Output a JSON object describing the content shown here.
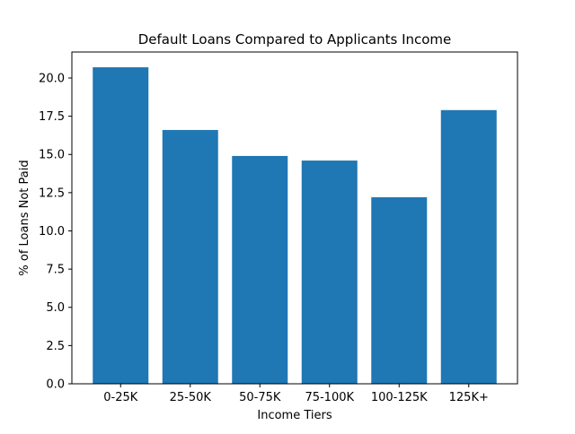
{
  "chart_data": {
    "type": "bar",
    "title": "Default Loans Compared to Applicants Income",
    "xlabel": "Income Tiers",
    "ylabel": "% of Loans Not Paid",
    "categories": [
      "0-25K",
      "25-50K",
      "50-75K",
      "75-100K",
      "100-125K",
      "125K+"
    ],
    "values": [
      20.7,
      16.6,
      14.9,
      14.6,
      12.2,
      17.9
    ],
    "ylim": [
      0,
      21.7
    ],
    "yticks": [
      "0.0",
      "2.5",
      "5.0",
      "7.5",
      "10.0",
      "12.5",
      "15.0",
      "17.5",
      "20.0"
    ],
    "grid": false,
    "legend": "none",
    "bar_color": "#1f77b4"
  }
}
